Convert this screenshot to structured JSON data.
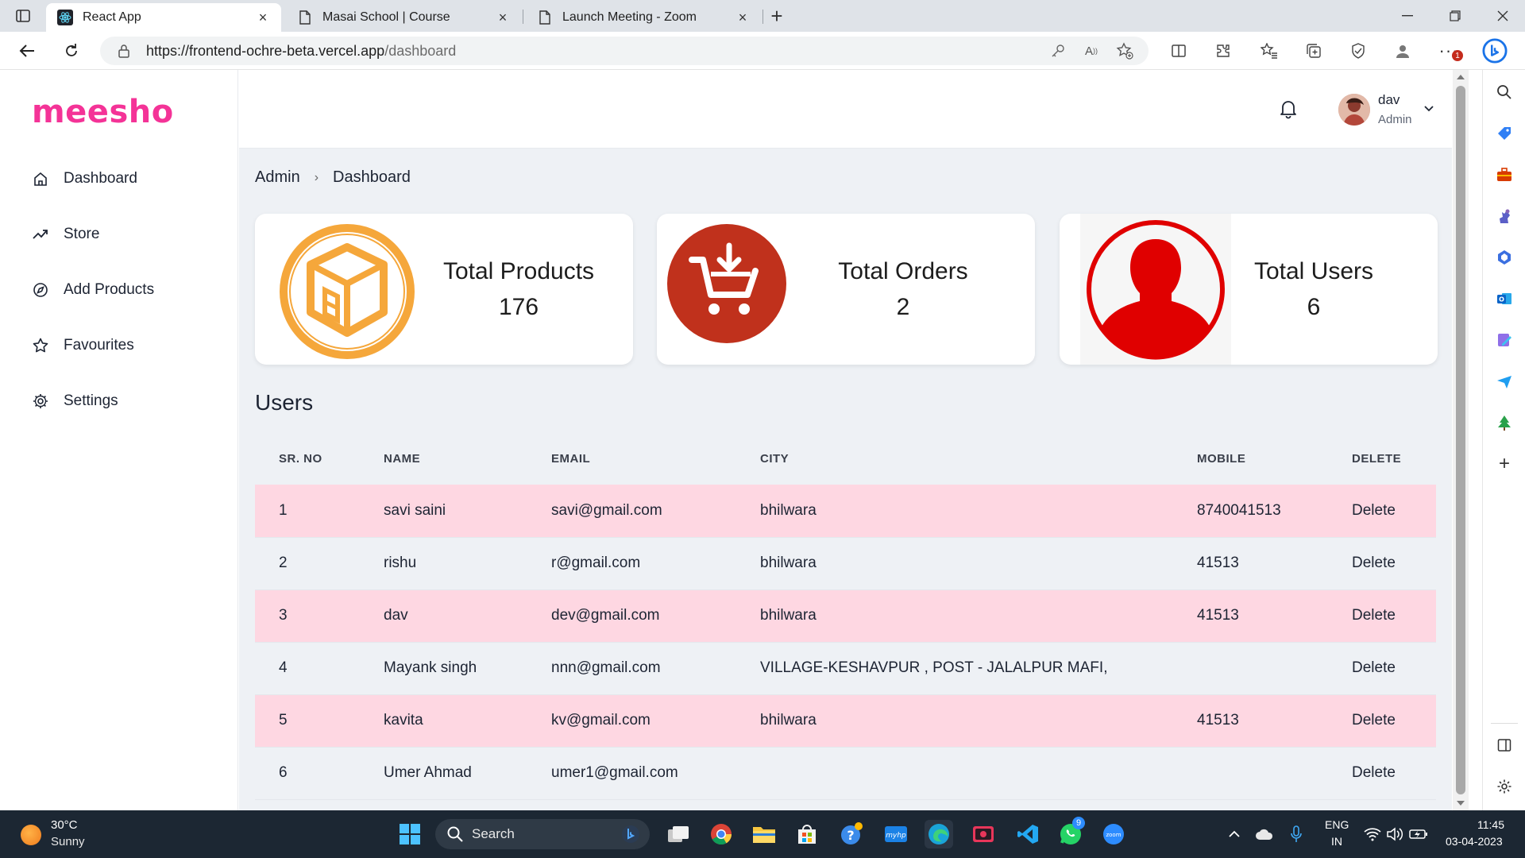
{
  "browser": {
    "tabs": [
      {
        "title": "React App",
        "active": true,
        "icon": "react-icon"
      },
      {
        "title": "Masai School | Course",
        "active": false,
        "icon": "page-icon"
      },
      {
        "title": "Launch Meeting - Zoom",
        "active": false,
        "icon": "page-icon"
      }
    ],
    "address": {
      "host": "https://frontend-ochre-beta.vercel.app",
      "path": "/dashboard"
    },
    "notification_badge": "1"
  },
  "app": {
    "logo": "meesho",
    "nav": [
      {
        "label": "Dashboard",
        "icon": "home-icon"
      },
      {
        "label": "Store",
        "icon": "trending-up-icon"
      },
      {
        "label": "Add Products",
        "icon": "compass-icon"
      },
      {
        "label": "Favourites",
        "icon": "star-icon"
      },
      {
        "label": "Settings",
        "icon": "gear-icon"
      }
    ],
    "header": {
      "user_name": "dav",
      "user_role": "Admin"
    },
    "breadcrumb": {
      "root": "Admin",
      "current": "Dashboard"
    },
    "stats": [
      {
        "title": "Total Products",
        "value": "176",
        "icon": "box-icon"
      },
      {
        "title": "Total Orders",
        "value": "2",
        "icon": "cart-icon"
      },
      {
        "title": "Total Users",
        "value": "6",
        "icon": "user-silhouette-icon"
      }
    ],
    "users_title": "Users",
    "table": {
      "headers": [
        "SR. NO",
        "NAME",
        "EMAIL",
        "CITY",
        "MOBILE",
        "DELETE"
      ],
      "rows": [
        {
          "sr": "1",
          "name": "savi saini",
          "email": "savi@gmail.com",
          "city": "bhilwara",
          "mobile": "8740041513",
          "action": "Delete"
        },
        {
          "sr": "2",
          "name": "rishu",
          "email": "r@gmail.com",
          "city": "bhilwara",
          "mobile": "41513",
          "action": "Delete"
        },
        {
          "sr": "3",
          "name": "dav",
          "email": "dev@gmail.com",
          "city": "bhilwara",
          "mobile": "41513",
          "action": "Delete"
        },
        {
          "sr": "4",
          "name": "Mayank singh",
          "email": "nnn@gmail.com",
          "city": "VILLAGE-KESHAVPUR , POST - JALALPUR MAFI,",
          "mobile": "",
          "action": "Delete"
        },
        {
          "sr": "5",
          "name": "kavita",
          "email": "kv@gmail.com",
          "city": "bhilwara",
          "mobile": "41513",
          "action": "Delete"
        },
        {
          "sr": "6",
          "name": "Umer Ahmad",
          "email": "umer1@gmail.com",
          "city": "",
          "mobile": "",
          "action": "Delete"
        }
      ]
    },
    "colors": {
      "brand": "#f43397",
      "row_highlight": "#fed7e2",
      "products_icon": "#f5a73b",
      "orders_icon": "#c0311c",
      "users_icon": "#e00000"
    }
  },
  "taskbar": {
    "weather_temp": "30°C",
    "weather_desc": "Sunny",
    "search_placeholder": "Search",
    "whatsapp_badge": "9",
    "lang_1": "ENG",
    "lang_2": "IN",
    "time": "11:45",
    "date": "03-04-2023"
  }
}
